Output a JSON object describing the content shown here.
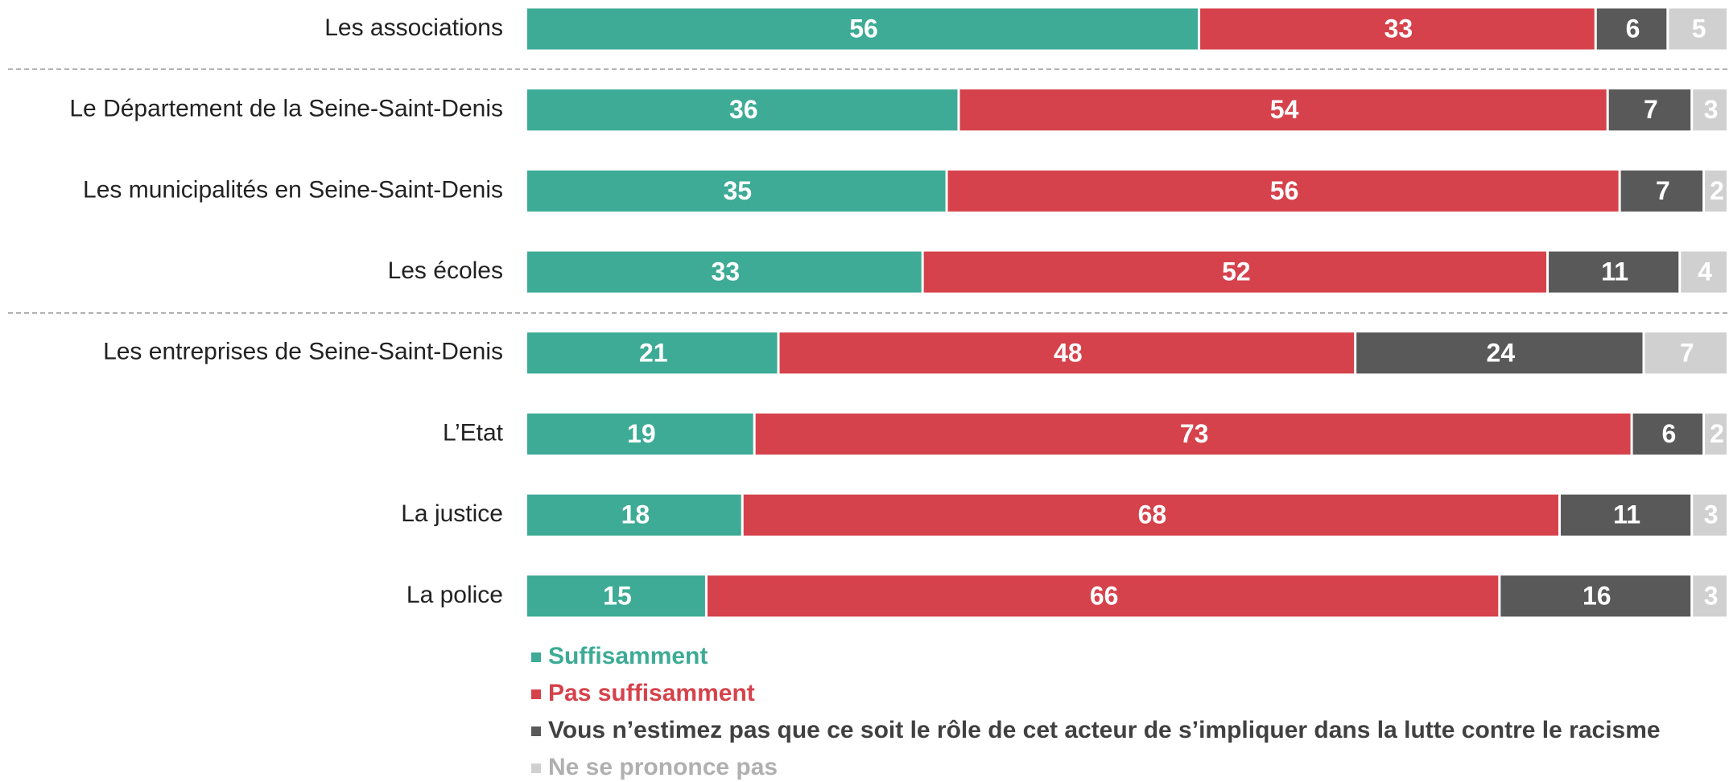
{
  "chart_data": {
    "type": "stacked_bar",
    "orientation": "horizontal",
    "categories": [
      "Les associations",
      "Le Département de la Seine-Saint-Denis",
      "Les municipalités en Seine-Saint-Denis",
      "Les écoles",
      "Les entreprises de Seine-Saint-Denis",
      "L’Etat",
      "La justice",
      "La police"
    ],
    "series": [
      {
        "name": "Suffisamment",
        "color": "#3dab95",
        "values": [
          56,
          36,
          35,
          33,
          21,
          19,
          18,
          15
        ]
      },
      {
        "name": "Pas suffisamment",
        "color": "#d6424b",
        "values": [
          33,
          54,
          56,
          52,
          48,
          73,
          68,
          66
        ]
      },
      {
        "name": "Vous n’estimez pas que ce soit le rôle de cet acteur de s’impliquer dans la lutte contre le racisme",
        "color": "#595959",
        "values": [
          6,
          7,
          7,
          11,
          24,
          6,
          11,
          16
        ]
      },
      {
        "name": "Ne se prononce pas",
        "color": "#d0d0d0",
        "values": [
          5,
          3,
          2,
          4,
          7,
          2,
          3,
          3
        ]
      }
    ],
    "xlim": [
      0,
      100
    ],
    "legend": "bottom"
  }
}
